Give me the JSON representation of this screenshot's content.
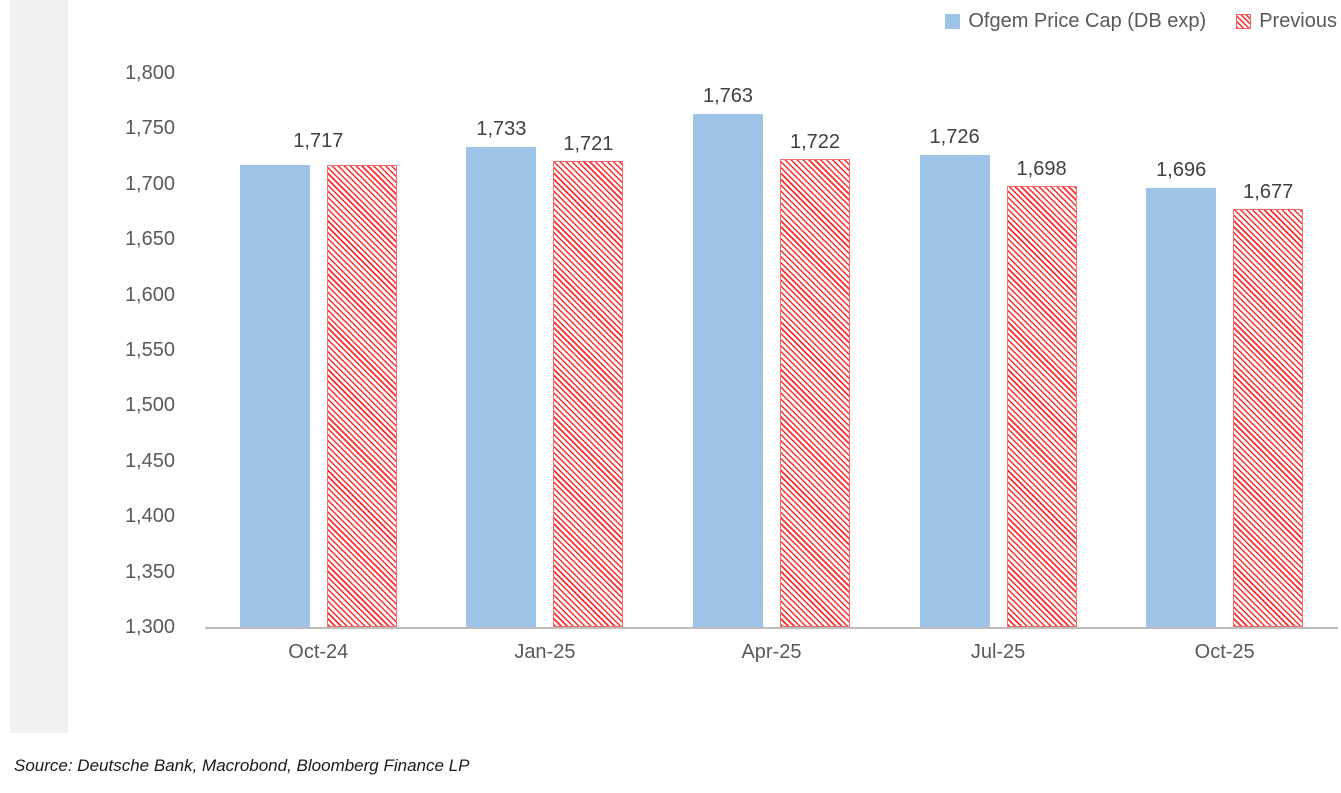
{
  "chart_data": {
    "type": "bar",
    "title": "",
    "categories": [
      "Oct-24",
      "Jan-25",
      "Apr-25",
      "Jul-25",
      "Oct-25"
    ],
    "series": [
      {
        "name": "Ofgem Price Cap (DB exp)",
        "values": [
          1717,
          1733,
          1763,
          1726,
          1696
        ],
        "labels": [
          "1,717",
          "1,733",
          "1,763",
          "1,726",
          "1,696"
        ],
        "color": "#9DC3E6",
        "pattern": "solid"
      },
      {
        "name": "Previous",
        "values": [
          1717,
          1721,
          1722,
          1698,
          1677
        ],
        "labels": [
          "",
          "1,721",
          "1,722",
          "1,698",
          "1,677"
        ],
        "color": "#FF2A2A",
        "pattern": "diagonal-hatch"
      }
    ],
    "ylim": [
      1300,
      1800
    ],
    "ytick_step": 50,
    "ytick_labels": [
      "1,300",
      "1,350",
      "1,400",
      "1,450",
      "1,500",
      "1,550",
      "1,600",
      "1,650",
      "1,700",
      "1,750",
      "1,800"
    ],
    "xlabel": "",
    "ylabel": "",
    "grid": false,
    "legend_position": "top-right"
  },
  "source_note": "Source: Deutsche Bank, Macrobond, Bloomberg Finance LP"
}
